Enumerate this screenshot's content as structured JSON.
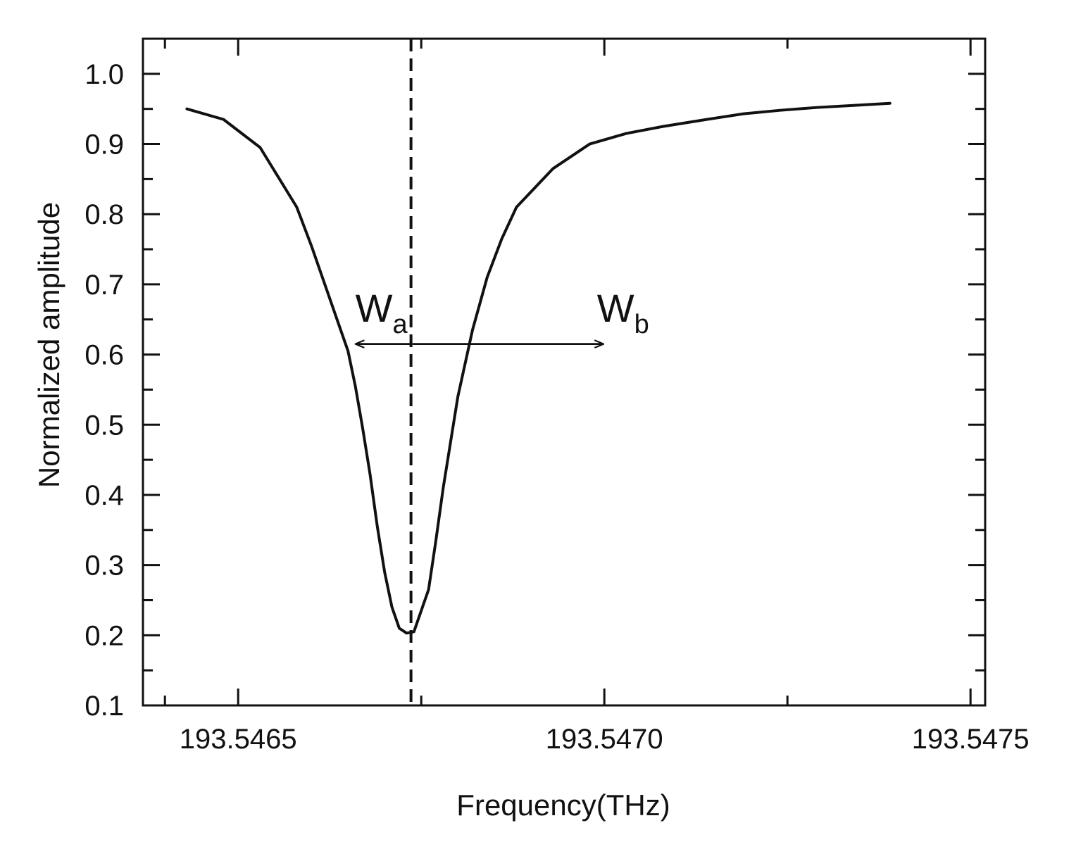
{
  "chart_data": {
    "type": "line",
    "xlabel": "Frequency(THz)",
    "ylabel": "Normalized amplitude",
    "xlim": [
      193.54637,
      193.54752
    ],
    "ylim": [
      0.1,
      1.05
    ],
    "x_ticks_major": [
      193.5465,
      193.547,
      193.5475
    ],
    "x_tick_labels": [
      "193.5465",
      "193.5470",
      "193.5475"
    ],
    "x_ticks_minor": [
      193.5464,
      193.54675,
      193.54725
    ],
    "y_ticks_major": [
      0.1,
      0.2,
      0.3,
      0.4,
      0.5,
      0.6,
      0.7,
      0.8,
      0.9,
      1.0
    ],
    "y_tick_labels": [
      "0.1",
      "0.2",
      "0.3",
      "0.4",
      "0.5",
      "0.6",
      "0.7",
      "0.8",
      "0.9",
      "1.0"
    ],
    "grid": false,
    "series": [
      {
        "color": "#111111",
        "x": [
          193.54643,
          193.54648,
          193.54653,
          193.54658,
          193.5466,
          193.54662,
          193.54664,
          193.54665,
          193.54666,
          193.54667,
          193.54668,
          193.54669,
          193.5467,
          193.54671,
          193.54672,
          193.54673,
          193.54674,
          193.54676,
          193.54677,
          193.54678,
          193.54679,
          193.5468,
          193.54682,
          193.54684,
          193.54686,
          193.54688,
          193.54693,
          193.54698,
          193.54703,
          193.54708,
          193.54714,
          193.54719,
          193.54724,
          193.54729,
          193.54734,
          193.54739
        ],
        "y": [
          0.95,
          0.935,
          0.895,
          0.81,
          0.755,
          0.695,
          0.635,
          0.605,
          0.555,
          0.495,
          0.43,
          0.355,
          0.29,
          0.24,
          0.21,
          0.203,
          0.205,
          0.265,
          0.335,
          0.41,
          0.475,
          0.54,
          0.635,
          0.71,
          0.765,
          0.81,
          0.865,
          0.9,
          0.915,
          0.925,
          0.935,
          0.943,
          0.948,
          0.952,
          0.955,
          0.958
        ]
      }
    ],
    "reference_line": {
      "orientation": "vertical",
      "x": 193.546736,
      "style": "dashed"
    },
    "annotations": [
      {
        "main": "W",
        "sub": "a",
        "x_text": 193.54666,
        "y_text": 0.665,
        "arrow_from": 193.546735,
        "arrow_to": 193.546661,
        "arrow_y": 0.615
      },
      {
        "main": "W",
        "sub": "b",
        "x_text": 193.54699,
        "y_text": 0.665,
        "arrow_from": 193.546738,
        "arrow_to": 193.546998,
        "arrow_y": 0.615
      }
    ]
  }
}
